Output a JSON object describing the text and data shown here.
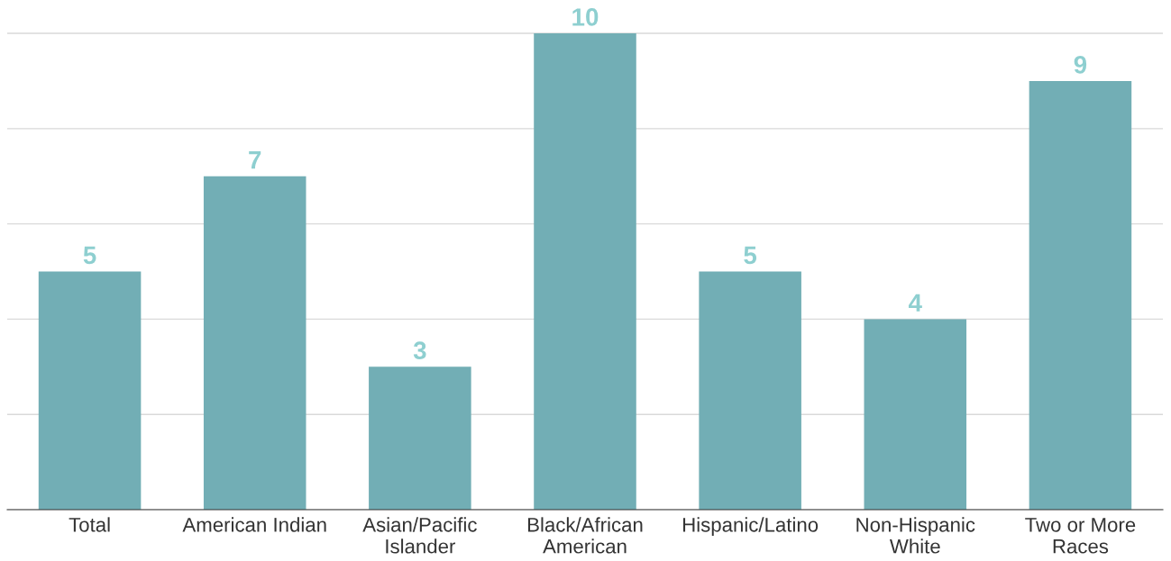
{
  "chart_data": {
    "type": "bar",
    "categories": [
      "Total",
      "American Indian",
      "Asian/Pacific\nIslander",
      "Black/African\nAmerican",
      "Hispanic/Latino",
      "Non-Hispanic\nWhite",
      "Two or More\nRaces"
    ],
    "values": [
      5,
      7,
      3,
      10,
      5,
      4,
      9
    ],
    "color": "#72aeb5",
    "yticks": [
      {
        "value": 0,
        "label": null
      },
      {
        "value": 2,
        "label": null
      },
      {
        "value": 4,
        "label": null
      },
      {
        "value": 6,
        "label": null
      },
      {
        "value": 8,
        "label": null
      },
      {
        "value": 10,
        "label": null
      }
    ],
    "grid": "y",
    "tick_labels": "x",
    "data_labels": true
  }
}
